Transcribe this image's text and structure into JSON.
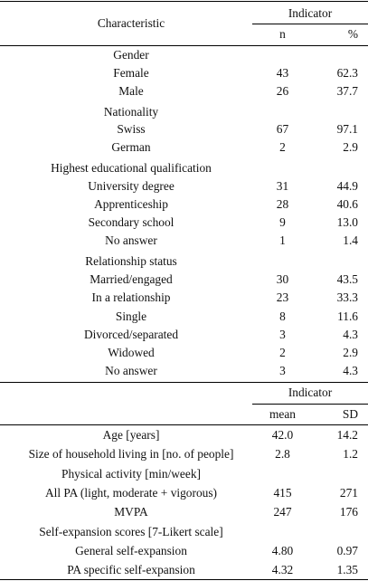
{
  "header1": {
    "characteristic": "Characteristic",
    "indicator": "Indicator",
    "n": "n",
    "pct": "%"
  },
  "rows1": [
    {
      "label": "Gender",
      "n": "",
      "p": ""
    },
    {
      "label": "Female",
      "n": "43",
      "p": "62.3"
    },
    {
      "label": "Male",
      "n": "26",
      "p": "37.7"
    },
    {
      "label": "Nationality",
      "n": "",
      "p": ""
    },
    {
      "label": "Swiss",
      "n": "67",
      "p": "97.1"
    },
    {
      "label": "German",
      "n": "2",
      "p": "2.9"
    },
    {
      "label": "Highest educational qualification",
      "n": "",
      "p": ""
    },
    {
      "label": "University degree",
      "n": "31",
      "p": "44.9"
    },
    {
      "label": "Apprenticeship",
      "n": "28",
      "p": "40.6"
    },
    {
      "label": "Secondary school",
      "n": "9",
      "p": "13.0"
    },
    {
      "label": "No answer",
      "n": "1",
      "p": "1.4"
    },
    {
      "label": "Relationship status",
      "n": "",
      "p": ""
    },
    {
      "label": "Married/engaged",
      "n": "30",
      "p": "43.5"
    },
    {
      "label": "In a relationship",
      "n": "23",
      "p": "33.3"
    },
    {
      "label": "Single",
      "n": "8",
      "p": "11.6"
    },
    {
      "label": "Divorced/separated",
      "n": "3",
      "p": "4.3"
    },
    {
      "label": "Widowed",
      "n": "2",
      "p": "2.9"
    },
    {
      "label": "No answer",
      "n": "3",
      "p": "4.3"
    }
  ],
  "header2": {
    "indicator": "Indicator",
    "mean": "mean",
    "sd": "SD"
  },
  "rows2": [
    {
      "label": "Age [years]",
      "n": "42.0",
      "p": "14.2"
    },
    {
      "label": "Size of household living in [no. of people]",
      "n": "2.8",
      "p": "1.2"
    },
    {
      "label": "Physical activity [min/week]",
      "n": "",
      "p": ""
    },
    {
      "label": "All PA (light, moderate + vigorous)",
      "n": "415",
      "p": "271"
    },
    {
      "label": "MVPA",
      "n": "247",
      "p": "176"
    },
    {
      "label": "Self-expansion scores [7-Likert scale]",
      "n": "",
      "p": ""
    },
    {
      "label": "General self-expansion",
      "n": "4.80",
      "p": "0.97"
    },
    {
      "label": "PA specific self-expansion",
      "n": "4.32",
      "p": "1.35"
    }
  ]
}
